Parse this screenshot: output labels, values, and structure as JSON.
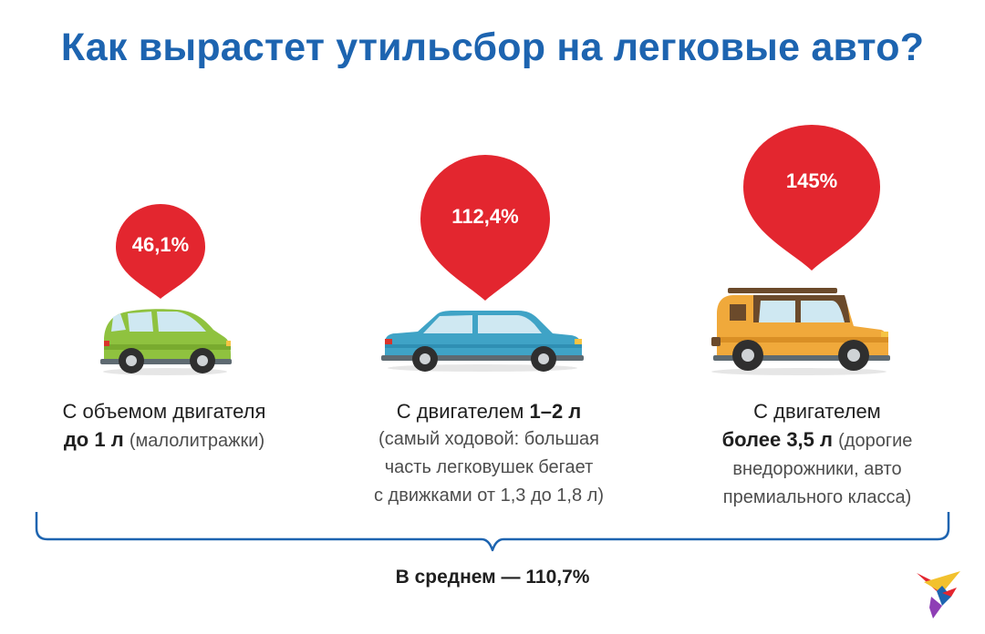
{
  "title": "Как вырастет утильсбор на легковые авто?",
  "categories": [
    {
      "percent": "46,1%",
      "car_icon": "green-hatchback-icon",
      "desc_line1": "С объемом двигателя",
      "desc_bold": "до 1 л",
      "desc_note": "(малолитражки)"
    },
    {
      "percent": "112,4%",
      "car_icon": "blue-sedan-icon",
      "desc_line1_prefix": "С двигателем ",
      "desc_bold": "1–2 л",
      "desc_note_1": "(самый ходовой: большая",
      "desc_note_2": "часть легковушек бегает",
      "desc_note_3": "с движками от 1,3 до 1,8 л)"
    },
    {
      "percent": "145%",
      "car_icon": "orange-suv-icon",
      "desc_line1": "С двигателем",
      "desc_bold": "более 3,5 л",
      "desc_note_1": "(дорогие",
      "desc_note_2": "внедорожники, авто",
      "desc_note_3": "премиального класса)"
    }
  ],
  "average": "В среднем — 110,7%",
  "colors": {
    "title": "#1d64b0",
    "pin": "#e3262f",
    "brace": "#1d64b0"
  },
  "logo_icon": "kp-bird-logo-icon"
}
